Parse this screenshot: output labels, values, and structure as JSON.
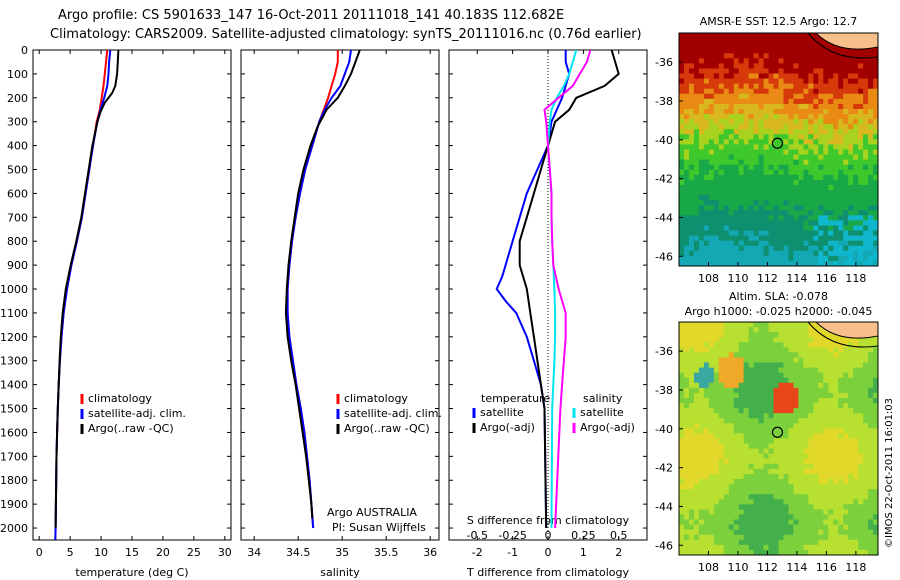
{
  "header": {
    "line1": "Argo profile: CS 5901633_147 16-Oct-2011 20111018_141 40.183S 112.682E",
    "line2": "Climatology: CARS2009. Satellite-adjusted climatology: synTS_20111016.nc (0.76d earlier)"
  },
  "colors": {
    "climatology": "#ff0000",
    "satellite": "#0000ff",
    "argo": "#000000",
    "sal_satellite": "#00e5ee",
    "sal_argo": "#ff00ff"
  },
  "chart_data": [
    {
      "type": "line",
      "panel": "temperature",
      "xlabel": "temperature (deg C)",
      "ylabel": "",
      "xlim": [
        -1,
        31
      ],
      "ylim": [
        2050,
        0
      ],
      "xticks": [
        "0",
        "5",
        "10",
        "15",
        "20",
        "25",
        "30"
      ],
      "yticks": [
        "0",
        "100",
        "200",
        "300",
        "400",
        "500",
        "600",
        "700",
        "800",
        "900",
        "1000",
        "1100",
        "1200",
        "1300",
        "1400",
        "1500",
        "1600",
        "1700",
        "1800",
        "1900",
        "2000"
      ],
      "legend": [
        "climatology",
        "satellite-adj. clim.",
        "Argo(..raw -QC)"
      ],
      "legend_position": "lower-right",
      "series": [
        {
          "name": "climatology",
          "depth": [
            0,
            50,
            100,
            150,
            200,
            250,
            300,
            400,
            500,
            600,
            700,
            800,
            900,
            1000,
            1100,
            1200,
            1300,
            1400,
            1500,
            1600,
            1700,
            1800,
            1900,
            2000,
            2050
          ],
          "values": [
            11.0,
            10.8,
            10.6,
            10.4,
            10.1,
            9.8,
            9.3,
            8.7,
            8.1,
            7.5,
            6.9,
            6.1,
            5.2,
            4.5,
            3.95,
            3.6,
            3.35,
            3.15,
            3.0,
            2.9,
            2.8,
            2.75,
            2.7,
            2.65,
            2.6
          ]
        },
        {
          "name": "satellite-adj. clim.",
          "depth": [
            0,
            50,
            100,
            150,
            200,
            250,
            300,
            400,
            500,
            600,
            700,
            800,
            900,
            1000,
            1100,
            1200,
            1300,
            1400,
            1500,
            1600,
            1700,
            1800,
            1900,
            2000,
            2050
          ],
          "values": [
            11.5,
            11.3,
            11.2,
            11.0,
            10.5,
            9.9,
            9.4,
            8.7,
            8.1,
            7.5,
            6.9,
            6.1,
            5.2,
            4.5,
            3.95,
            3.6,
            3.35,
            3.15,
            3.0,
            2.9,
            2.8,
            2.75,
            2.7,
            2.65,
            2.6
          ]
        },
        {
          "name": "Argo(..raw -QC)",
          "depth": [
            0,
            50,
            100,
            150,
            180,
            220,
            260,
            300,
            400,
            500,
            600,
            700,
            800,
            900,
            1000,
            1100,
            1200,
            1300,
            1400,
            1500,
            1600,
            1700,
            1800,
            1900,
            2000
          ],
          "values": [
            12.8,
            12.7,
            12.6,
            12.3,
            11.8,
            10.6,
            9.9,
            9.4,
            8.6,
            8.0,
            7.4,
            6.8,
            6.0,
            5.1,
            4.3,
            3.8,
            3.5,
            3.3,
            3.15,
            3.0,
            2.9,
            2.8,
            2.75,
            2.7,
            2.65
          ]
        }
      ]
    },
    {
      "type": "line",
      "panel": "salinity",
      "xlabel": "salinity",
      "xlim": [
        33.85,
        36.1
      ],
      "ylim": [
        2050,
        0
      ],
      "xticks": [
        "34",
        "34.5",
        "35",
        "35.5",
        "36"
      ],
      "legend": [
        "climatology",
        "satellite-adj. clim.",
        "Argo(..raw -QC)"
      ],
      "legend_position": "lower-right",
      "annotation": [
        "Argo AUSTRALIA",
        "PI: Susan Wijffels"
      ],
      "series": [
        {
          "name": "climatology",
          "depth": [
            0,
            50,
            100,
            150,
            200,
            250,
            300,
            400,
            500,
            600,
            700,
            800,
            900,
            1000,
            1100,
            1200,
            1300,
            1400,
            1500,
            1600,
            1700,
            1800,
            1900,
            2000
          ],
          "values": [
            34.95,
            34.95,
            34.92,
            34.88,
            34.84,
            34.79,
            34.74,
            34.66,
            34.58,
            34.52,
            34.47,
            34.43,
            34.4,
            34.38,
            34.38,
            34.4,
            34.44,
            34.48,
            34.53,
            34.57,
            34.6,
            34.63,
            34.65,
            34.67
          ]
        },
        {
          "name": "satellite-adj. clim.",
          "depth": [
            0,
            50,
            100,
            150,
            200,
            250,
            300,
            400,
            500,
            600,
            700,
            800,
            900,
            1000,
            1100,
            1200,
            1300,
            1400,
            1500,
            1600,
            1700,
            1800,
            1900,
            2000
          ],
          "values": [
            35.1,
            35.08,
            35.03,
            34.98,
            34.88,
            34.8,
            34.74,
            34.66,
            34.58,
            34.52,
            34.47,
            34.43,
            34.4,
            34.38,
            34.38,
            34.4,
            34.44,
            34.48,
            34.53,
            34.57,
            34.6,
            34.63,
            34.65,
            34.67
          ]
        },
        {
          "name": "Argo(..raw -QC)",
          "depth": [
            0,
            50,
            100,
            150,
            200,
            250,
            280,
            320,
            400,
            500,
            600,
            700,
            800,
            900,
            1000,
            1100,
            1200,
            1300,
            1400,
            1500,
            1600,
            1700,
            1800,
            1900,
            1960
          ],
          "values": [
            35.2,
            35.15,
            35.1,
            35.03,
            34.95,
            34.82,
            34.78,
            34.72,
            34.64,
            34.56,
            34.5,
            34.46,
            34.42,
            34.39,
            34.37,
            34.36,
            34.38,
            34.42,
            34.47,
            34.51,
            34.55,
            34.59,
            34.62,
            34.65,
            34.66
          ]
        }
      ]
    },
    {
      "type": "line",
      "panel": "difference",
      "xlabel": "T difference from climatology",
      "xlabel_top": "S difference from climatology",
      "xlim": [
        -2.8,
        2.8
      ],
      "ylim": [
        2050,
        0
      ],
      "xticks": [
        "-2",
        "-1",
        "0",
        "1",
        "2"
      ],
      "xticks_top": [
        "-0.5",
        "-0.25",
        "0",
        "0.25",
        "0.5"
      ],
      "legend_temperature_heading": "temperature",
      "legend_salinity_heading": "salinity",
      "legend": [
        "satellite",
        "Argo(-adj)",
        "satellite",
        "Argo(-adj)"
      ],
      "series": [
        {
          "name": "satellite",
          "group": "temperature",
          "depth": [
            0,
            50,
            100,
            200,
            300,
            400,
            500,
            600,
            700,
            800,
            900,
            950,
            1000,
            1050,
            1100,
            1200,
            1300,
            1400,
            1500,
            2000
          ],
          "values": [
            0.5,
            0.5,
            0.6,
            0.4,
            0.1,
            0.0,
            -0.3,
            -0.6,
            -0.8,
            -1.0,
            -1.2,
            -1.3,
            -1.45,
            -1.2,
            -0.9,
            -0.6,
            -0.4,
            -0.2,
            -0.1,
            -0.05
          ]
        },
        {
          "name": "Argo(-adj)",
          "group": "temperature",
          "depth": [
            0,
            50,
            100,
            150,
            200,
            250,
            300,
            400,
            500,
            600,
            700,
            800,
            900,
            1000,
            1100,
            1200,
            1300,
            1400,
            1500,
            2000
          ],
          "values": [
            1.8,
            1.9,
            2.0,
            1.6,
            0.8,
            0.6,
            0.2,
            0.0,
            -0.2,
            -0.4,
            -0.6,
            -0.8,
            -0.8,
            -0.6,
            -0.5,
            -0.4,
            -0.3,
            -0.2,
            -0.1,
            -0.05
          ]
        },
        {
          "name": "satellite",
          "group": "salinity",
          "depth": [
            0,
            50,
            100,
            150,
            200,
            250,
            300,
            400,
            500,
            600,
            700,
            800,
            900,
            1000,
            1100,
            1200,
            1300,
            1400,
            1500,
            2000
          ],
          "values": [
            0.8,
            0.7,
            0.6,
            0.45,
            0.25,
            0.1,
            0.05,
            0.0,
            0.05,
            0.1,
            0.1,
            0.12,
            0.15,
            0.18,
            0.2,
            0.2,
            0.18,
            0.15,
            0.12,
            0.1
          ]
        },
        {
          "name": "Argo(-adj)",
          "group": "salinity",
          "depth": [
            0,
            50,
            100,
            150,
            200,
            250,
            300,
            400,
            500,
            600,
            700,
            800,
            900,
            1000,
            1100,
            1200,
            1300,
            1400,
            1500,
            2000
          ],
          "values": [
            1.2,
            1.1,
            0.9,
            0.7,
            0.3,
            -0.1,
            -0.05,
            0.0,
            0.05,
            0.1,
            0.1,
            0.12,
            0.15,
            0.3,
            0.5,
            0.5,
            0.45,
            0.4,
            0.35,
            0.2
          ]
        }
      ]
    },
    {
      "type": "heatmap",
      "panel": "sst_map",
      "title": "AMSR-E SST: 12.5 Argo: 12.7",
      "xlim": [
        106,
        119.5
      ],
      "ylim": [
        -46.5,
        -34.5
      ],
      "xticks": [
        "108",
        "110",
        "112",
        "114",
        "116",
        "118"
      ],
      "yticks": [
        "-36",
        "-38",
        "-40",
        "-42",
        "-44",
        "-46"
      ],
      "argo_position": [
        112.68,
        -40.18
      ]
    },
    {
      "type": "heatmap",
      "panel": "sla_map",
      "title": "Altim. SLA: -0.078",
      "subtitle": "Argo h1000: -0.025 h2000: -0.045",
      "xlim": [
        106,
        119.5
      ],
      "ylim": [
        -46.5,
        -34.5
      ],
      "xticks": [
        "108",
        "110",
        "112",
        "114",
        "116",
        "118"
      ],
      "yticks": [
        "-36",
        "-38",
        "-40",
        "-42",
        "-44",
        "-46"
      ],
      "argo_position": [
        112.68,
        -40.18
      ]
    }
  ],
  "watermark": "©IMOS 22-Oct-2011 16:01:03"
}
